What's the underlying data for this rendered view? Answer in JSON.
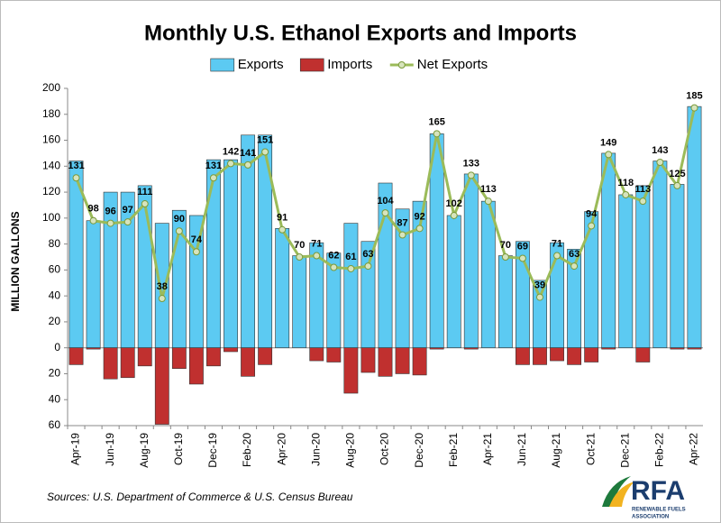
{
  "chart_data": {
    "type": "bar-line",
    "title": "Monthly U.S. Ethanol Exports and Imports",
    "y_label": "MILLION GALLONS",
    "source": "Sources: U.S. Department of Commerce & U.S. Census Bureau",
    "categories": [
      "Apr-19",
      null,
      "Jun-19",
      null,
      "Aug-19",
      null,
      "Oct-19",
      null,
      "Dec-19",
      null,
      "Feb-20",
      null,
      "Apr-20",
      null,
      "Jun-20",
      null,
      "Aug-20",
      null,
      "Oct-20",
      null,
      "Dec-20",
      null,
      "Feb-21",
      null,
      "Apr-21",
      null,
      "Jun-21",
      null,
      "Aug-21",
      null,
      "Oct-21",
      null,
      "Dec-21",
      null,
      "Feb-22",
      null,
      "Apr-22"
    ],
    "series": [
      {
        "name": "Exports",
        "kind": "bar",
        "color": "#5ccaf2",
        "values": [
          144,
          98,
          120,
          120,
          125,
          96,
          106,
          102,
          145,
          145,
          164,
          164,
          92,
          71,
          81,
          73,
          96,
          82,
          127,
          107,
          113,
          165,
          102,
          134,
          113,
          71,
          82,
          52,
          81,
          76,
          105,
          150,
          118,
          125,
          144,
          126,
          186
        ]
      },
      {
        "name": "Imports",
        "kind": "bar",
        "color": "#c0302f",
        "values": [
          -13,
          -1,
          -24,
          -23,
          -14,
          -59,
          -16,
          -28,
          -14,
          -3,
          -22,
          -13,
          0,
          0,
          -10,
          -11,
          -35,
          -19,
          -22,
          -20,
          -21,
          -1,
          0,
          -1,
          0,
          0,
          -13,
          -13,
          -10,
          -13,
          -11,
          -1,
          0,
          -11,
          0,
          -1,
          -1
        ]
      },
      {
        "name": "Net Exports",
        "kind": "line",
        "color": "#9bbb59",
        "values": [
          131,
          98,
          96,
          97,
          111,
          38,
          90,
          74,
          131,
          142,
          141,
          151,
          91,
          70,
          71,
          62,
          61,
          63,
          104,
          87,
          92,
          165,
          102,
          133,
          113,
          70,
          69,
          39,
          71,
          63,
          94,
          149,
          118,
          113,
          143,
          125,
          185
        ]
      }
    ],
    "ylim": [
      -60,
      200
    ],
    "yticks": [
      {
        "value": -60,
        "label": "60"
      },
      {
        "value": -40,
        "label": "40"
      },
      {
        "value": -20,
        "label": "20"
      },
      0,
      20,
      40,
      60,
      80,
      100,
      120,
      140,
      160,
      180,
      200
    ],
    "legend": "top"
  },
  "logo": {
    "text": "RFA",
    "line1": "RENEWABLE FUELS",
    "line2": "ASSOCIATION"
  }
}
